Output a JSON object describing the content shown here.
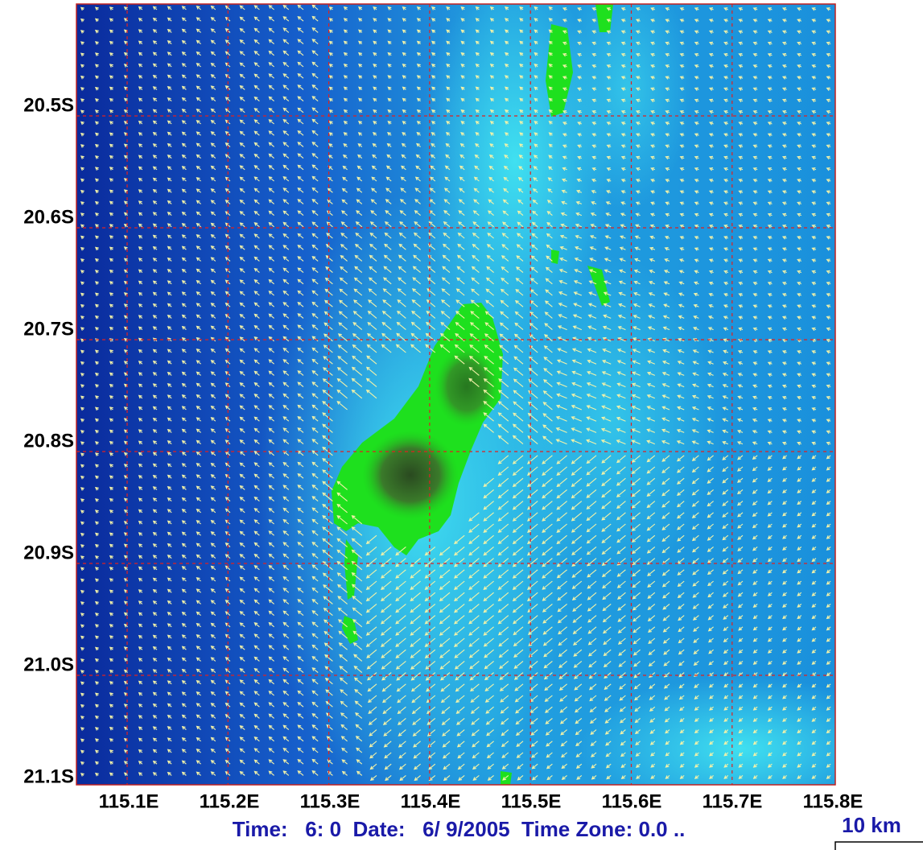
{
  "y_labels": [
    "20.5S",
    "20.6S",
    "20.7S",
    "20.8S",
    "20.9S",
    "21.0S",
    "21.1S"
  ],
  "x_labels": [
    "115.1E",
    "115.2E",
    "115.3E",
    "115.4E",
    "115.5E",
    "115.6E",
    "115.7E",
    "115.8E"
  ],
  "footer": {
    "status": "Time:   6: 0  Date:   6/ 9/2005  Time Zone: 0.0 ..",
    "scale": "10 km"
  }
}
